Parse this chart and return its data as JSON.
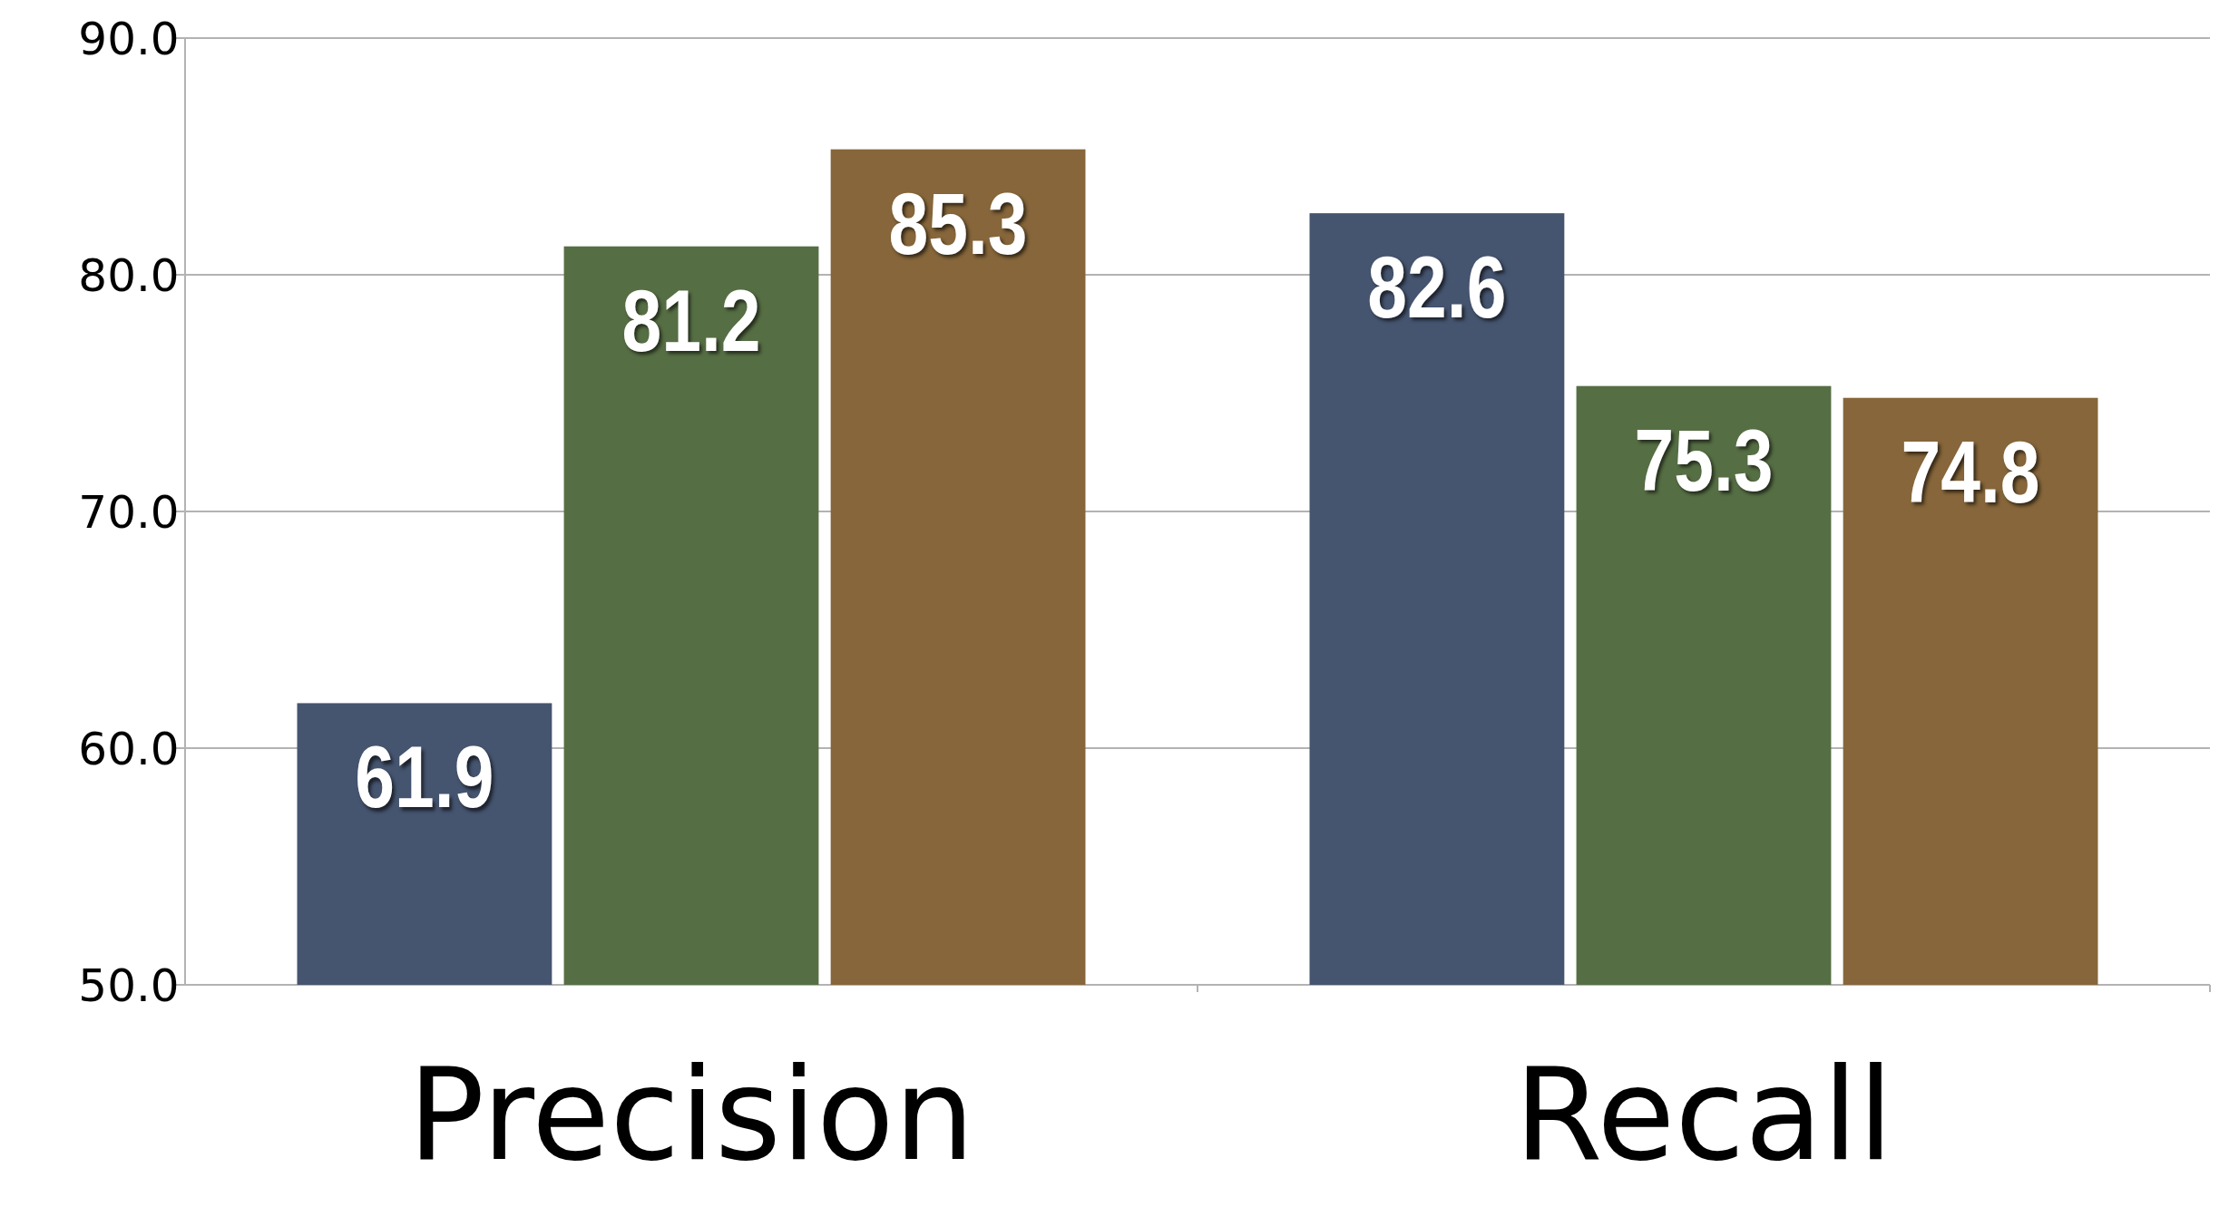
{
  "chart_data": {
    "type": "bar",
    "categories": [
      "Precision",
      "Recall"
    ],
    "series": [
      {
        "color": "#45546f",
        "values": [
          61.9,
          82.6
        ]
      },
      {
        "color": "#566e44",
        "values": [
          81.2,
          75.3
        ]
      },
      {
        "color": "#86663a",
        "values": [
          85.3,
          74.8
        ]
      }
    ],
    "ylim": [
      50,
      90
    ],
    "yticks": [
      {
        "value": 50,
        "label": "50.0"
      },
      {
        "value": 60,
        "label": "60.0"
      },
      {
        "value": 70,
        "label": "70.0"
      },
      {
        "value": 80,
        "label": "80.0"
      },
      {
        "value": 90,
        "label": "90.0"
      }
    ],
    "grid": "y",
    "data_labels": true
  }
}
